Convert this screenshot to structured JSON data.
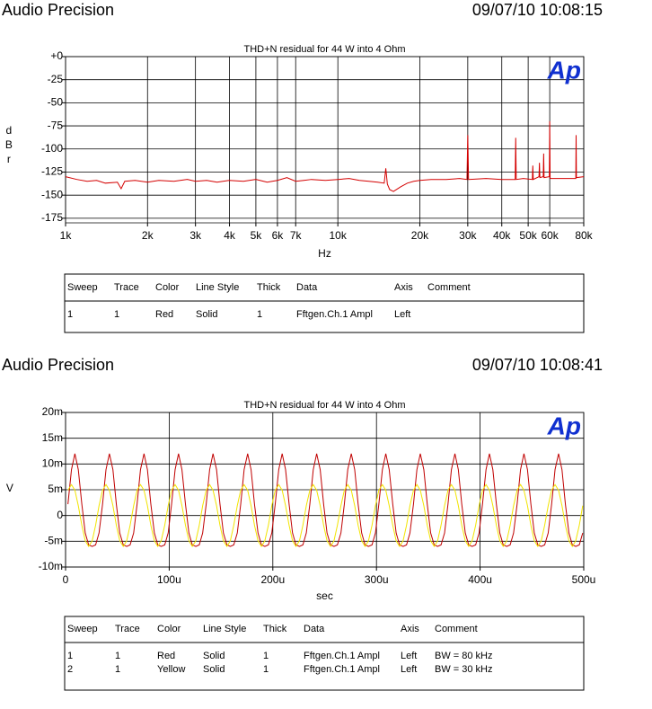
{
  "chart_data": [
    {
      "type": "line",
      "header_left": "Audio Precision",
      "header_right": "09/07/10 10:08:15",
      "title": "THD+N residual for 44 W into 4 Ohm",
      "logo": "Ap",
      "x_label": "Hz",
      "y_label": "dBr",
      "xscale": "log",
      "grid": true,
      "xlim": [
        1000,
        80000
      ],
      "xticks": [
        {
          "value": 1000,
          "label": "1k"
        },
        {
          "value": 2000,
          "label": "2k"
        },
        {
          "value": 3000,
          "label": "3k"
        },
        {
          "value": 4000,
          "label": "4k"
        },
        {
          "value": 5000,
          "label": "5k"
        },
        {
          "value": 6000,
          "label": "6k"
        },
        {
          "value": 7000,
          "label": "7k"
        },
        {
          "value": 10000,
          "label": "10k"
        },
        {
          "value": 20000,
          "label": "20k"
        },
        {
          "value": 30000,
          "label": "30k"
        },
        {
          "value": 40000,
          "label": "40k"
        },
        {
          "value": 50000,
          "label": "50k"
        },
        {
          "value": 60000,
          "label": "60k"
        },
        {
          "value": 80000,
          "label": "80k"
        }
      ],
      "ylim": [
        -180,
        0
      ],
      "yticks": [
        {
          "value": 0,
          "label": "+0"
        },
        -25,
        -50,
        -75,
        -100,
        -125,
        -150,
        -175
      ],
      "x": [
        1000,
        1100,
        1200,
        1300,
        1400,
        1550,
        1600,
        1650,
        1800,
        2000,
        2200,
        2500,
        2800,
        3000,
        3300,
        3600,
        4000,
        4500,
        5000,
        5500,
        6000,
        6500,
        7000,
        7500,
        8000,
        9000,
        10000,
        11000,
        12000,
        13000,
        14000,
        14800,
        15000,
        15200,
        15500,
        16000,
        17000,
        18000,
        19000,
        20000,
        22000,
        25000,
        28000,
        29800,
        30000,
        30200,
        35000,
        40000,
        44800,
        45000,
        45200,
        48000,
        51800,
        52000,
        52200,
        54800,
        55000,
        55200,
        56800,
        57000,
        57200,
        59800,
        60000,
        60200,
        65000,
        70000,
        74800,
        75000,
        75200,
        80000
      ],
      "series": [
        {
          "color": "#d40000",
          "values": [
            -130,
            -133,
            -135,
            -134,
            -137,
            -136,
            -143,
            -135,
            -134,
            -136,
            -134,
            -135,
            -133,
            -135,
            -134,
            -136,
            -134,
            -135,
            -133,
            -136,
            -134,
            -131,
            -135,
            -134,
            -133,
            -134,
            -133,
            -132,
            -134,
            -135,
            -136,
            -137,
            -121,
            -138,
            -144,
            -146,
            -141,
            -137,
            -135,
            -134,
            -133,
            -133,
            -132,
            -133,
            -85,
            -133,
            -132,
            -133,
            -133,
            -88,
            -133,
            -132,
            -133,
            -118,
            -133,
            -130,
            -115,
            -131,
            -130,
            -105,
            -131,
            -130,
            -70,
            -132,
            -132,
            -132,
            -132,
            -85,
            -131,
            -130
          ]
        }
      ],
      "table": {
        "columns": [
          "Sweep",
          "Trace",
          "Color",
          "Line Style",
          "Thick",
          "Data",
          "Axis",
          "Comment"
        ],
        "rows": [
          [
            "1",
            "1",
            "Red",
            "Solid",
            "1",
            "Fftgen.Ch.1 Ampl",
            "Left",
            null
          ]
        ]
      }
    },
    {
      "type": "line",
      "header_left": "Audio Precision",
      "header_right": "09/07/10 10:08:41",
      "title": "THD+N residual for 44 W into 4 Ohm",
      "logo": "Ap",
      "x_label": "sec",
      "y_label": "V",
      "grid": true,
      "xlim": [
        0,
        500
      ],
      "xticks": [
        0,
        {
          "value": 100,
          "label": "100u"
        },
        {
          "value": 200,
          "label": "200u"
        },
        {
          "value": 300,
          "label": "300u"
        },
        {
          "value": 400,
          "label": "400u"
        },
        {
          "value": 500,
          "label": "500u"
        }
      ],
      "ylim": [
        -10,
        20
      ],
      "yticks": [
        {
          "value": -10,
          "label": "-10m"
        },
        {
          "value": -5,
          "label": "-5m"
        },
        0,
        {
          "value": 5,
          "label": "5m"
        },
        {
          "value": 10,
          "label": "10m"
        },
        {
          "value": 15,
          "label": "15m"
        },
        {
          "value": 20,
          "label": "20m"
        }
      ],
      "x": [
        2.3,
        5.7,
        9,
        12.3,
        15.7,
        19,
        22.3,
        25.7,
        29,
        32.3,
        35.7,
        39,
        42.3,
        45.7,
        49,
        52.3,
        55.7,
        59,
        62.3,
        65.7,
        69,
        72.3,
        75.7,
        79,
        82.3,
        85.7,
        89,
        92.3,
        95.7,
        99,
        102.3,
        105.7,
        109,
        112.3,
        115.7,
        119,
        122.3,
        125.7,
        129,
        132.3,
        135.7,
        139,
        142.3,
        145.7,
        149,
        152.3,
        155.7,
        159,
        162.3,
        165.7,
        169,
        172.3,
        175.7,
        179,
        182.3,
        185.7,
        189,
        192.3,
        195.7,
        199,
        202.3,
        205.7,
        209,
        212.3,
        215.7,
        219,
        222.3,
        225.7,
        229,
        232.3,
        235.7,
        239,
        242.3,
        245.7,
        249,
        252.3,
        255.7,
        259,
        262.3,
        265.7,
        269,
        272.3,
        275.7,
        279,
        282.3,
        285.7,
        289,
        292.3,
        295.7,
        299,
        302.3,
        305.7,
        309,
        312.3,
        315.7,
        319,
        322.3,
        325.7,
        329,
        332.3,
        335.7,
        339,
        342.3,
        345.7,
        349,
        352.3,
        355.7,
        359,
        362.3,
        365.7,
        369,
        372.3,
        375.7,
        379,
        382.3,
        385.7,
        389,
        392.3,
        395.7,
        399,
        402.3,
        405.7,
        409,
        412.3,
        415.7,
        419,
        422.3,
        425.7,
        429,
        432.3,
        435.7,
        439,
        442.3,
        445.7,
        449,
        452.3,
        455.7,
        459,
        462.3,
        465.7,
        469,
        472.3,
        475.7,
        479,
        482.3,
        485.7,
        489,
        492.3,
        495.7,
        499
      ],
      "series": [
        {
          "color": "#c00000",
          "values": [
            2.2,
            8.9,
            12,
            8.9,
            2.2,
            -3.4,
            -5.7,
            -6,
            -5.7,
            -3.4,
            2.2,
            8.9,
            12,
            8.9,
            2.2,
            -3.4,
            -5.7,
            -6,
            -5.7,
            -3.4,
            2.2,
            8.9,
            12,
            8.9,
            2.2,
            -3.4,
            -5.7,
            -6,
            -5.7,
            -3.4,
            2.2,
            8.9,
            12,
            8.9,
            2.2,
            -3.4,
            -5.7,
            -6,
            -5.7,
            -3.4,
            2.2,
            8.9,
            12,
            8.9,
            2.2,
            -3.4,
            -5.7,
            -6,
            -5.7,
            -3.4,
            2.2,
            8.9,
            12,
            8.9,
            2.2,
            -3.4,
            -5.7,
            -6,
            -5.7,
            -3.4,
            2.2,
            8.9,
            12,
            8.9,
            2.2,
            -3.4,
            -5.7,
            -6,
            -5.7,
            -3.4,
            2.2,
            8.9,
            12,
            8.9,
            2.2,
            -3.4,
            -5.7,
            -6,
            -5.7,
            -3.4,
            2.2,
            8.9,
            12,
            8.9,
            2.2,
            -3.4,
            -5.7,
            -6,
            -5.7,
            -3.4,
            2.2,
            8.9,
            12,
            8.9,
            2.2,
            -3.4,
            -5.7,
            -6,
            -5.7,
            -3.4,
            2.2,
            8.9,
            12,
            8.9,
            2.2,
            -3.4,
            -5.7,
            -6,
            -5.7,
            -3.4,
            2.2,
            8.9,
            12,
            8.9,
            2.2,
            -3.4,
            -5.7,
            -6,
            -5.7,
            -3.4,
            2.2,
            8.9,
            12,
            8.9,
            2.2,
            -3.4,
            -5.7,
            -6,
            -5.7,
            -3.4,
            2.2,
            8.9,
            12,
            8.9,
            2.2,
            -3.4,
            -5.7,
            -6,
            -5.7,
            -3.4,
            2.2,
            8.9,
            12,
            8.9,
            2.2,
            -3.4,
            -5.7,
            -6,
            -5.7,
            -3.4
          ]
        },
        {
          "color": "#f2e400",
          "values": [
            4.9,
            6,
            4.9,
            1.9,
            -1.9,
            -4.9,
            -6,
            -4.9,
            -1.9,
            1.9,
            4.9,
            6,
            4.9,
            1.9,
            -1.9,
            -4.9,
            -6,
            -4.9,
            -1.9,
            1.9,
            4.9,
            6,
            4.9,
            1.9,
            -1.9,
            -4.9,
            -6,
            -4.9,
            -1.9,
            1.9,
            4.9,
            6,
            4.9,
            1.9,
            -1.9,
            -4.9,
            -6,
            -4.9,
            -1.9,
            1.9,
            4.9,
            6,
            4.9,
            1.9,
            -1.9,
            -4.9,
            -6,
            -4.9,
            -1.9,
            1.9,
            4.9,
            6,
            4.9,
            1.9,
            -1.9,
            -4.9,
            -6,
            -4.9,
            -1.9,
            1.9,
            4.9,
            6,
            4.9,
            1.9,
            -1.9,
            -4.9,
            -6,
            -4.9,
            -1.9,
            1.9,
            4.9,
            6,
            4.9,
            1.9,
            -1.9,
            -4.9,
            -6,
            -4.9,
            -1.9,
            1.9,
            4.9,
            6,
            4.9,
            1.9,
            -1.9,
            -4.9,
            -6,
            -4.9,
            -1.9,
            1.9,
            4.9,
            6,
            4.9,
            1.9,
            -1.9,
            -4.9,
            -6,
            -4.9,
            -1.9,
            1.9,
            4.9,
            6,
            4.9,
            1.9,
            -1.9,
            -4.9,
            -6,
            -4.9,
            -1.9,
            1.9,
            4.9,
            6,
            4.9,
            1.9,
            -1.9,
            -4.9,
            -6,
            -4.9,
            -1.9,
            1.9,
            4.9,
            6,
            4.9,
            1.9,
            -1.9,
            -4.9,
            -6,
            -4.9,
            -1.9,
            1.9,
            4.9,
            6,
            4.9,
            1.9,
            -1.9,
            -4.9,
            -6,
            -4.9,
            -1.9,
            1.9,
            4.9,
            6,
            4.9,
            1.9,
            -1.9,
            -4.9,
            -6,
            -4.9,
            -1.9,
            1.9
          ]
        }
      ],
      "table": {
        "columns": [
          "Sweep",
          "Trace",
          "Color",
          "Line Style",
          "Thick",
          "Data",
          "Axis",
          "Comment"
        ],
        "rows": [
          [
            "1",
            "1",
            "Red",
            "Solid",
            "1",
            "Fftgen.Ch.1 Ampl",
            "Left",
            "BW = 80 kHz"
          ],
          [
            "2",
            "1",
            "Yellow",
            "Solid",
            "1",
            "Fftgen.Ch.1 Ampl",
            "Left",
            "BW = 30 kHz"
          ]
        ]
      }
    }
  ]
}
